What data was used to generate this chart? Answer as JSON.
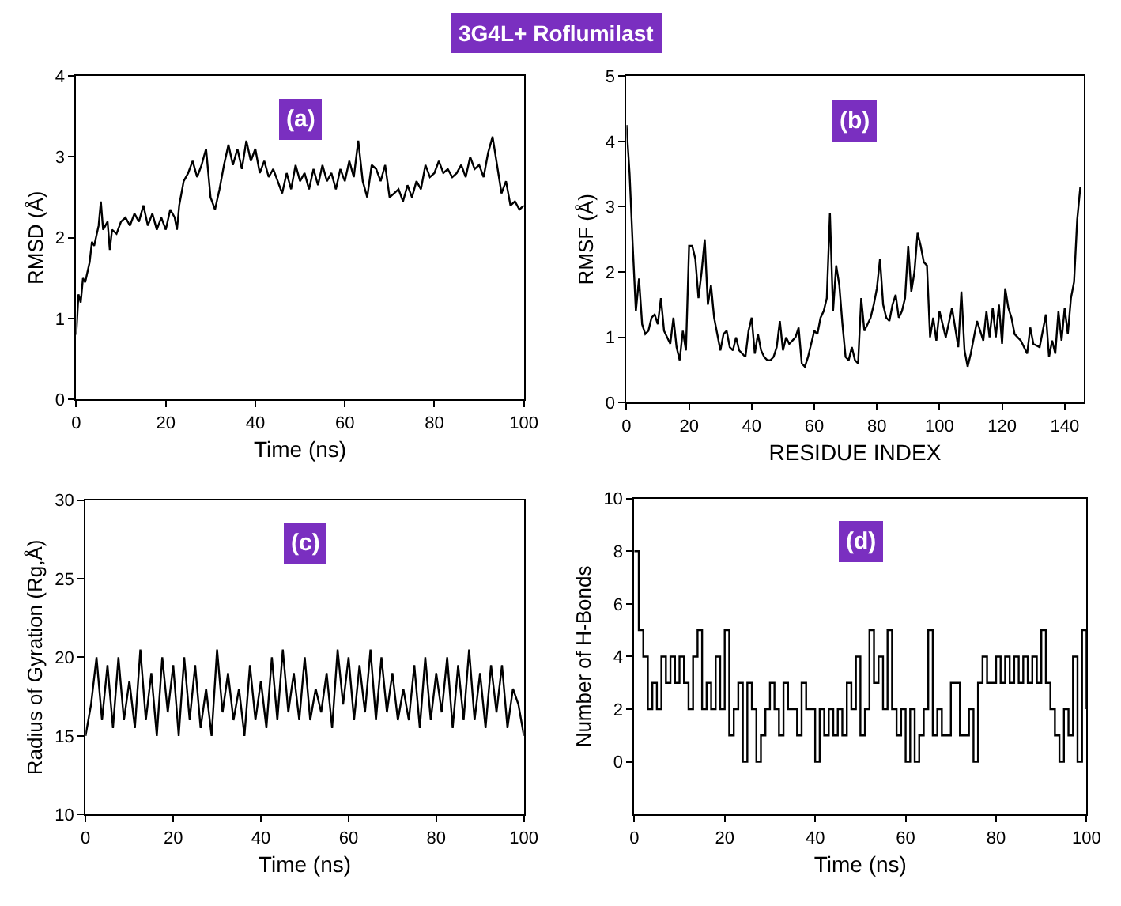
{
  "chart_data": [
    {
      "type": "line",
      "title": "3G4L+ Roflumilast",
      "annotations": [
        "(a)"
      ],
      "xlabel": "Time (ns)",
      "ylabel": "RMSD (Å)",
      "xlim": [
        0,
        100
      ],
      "xticks": [
        0,
        20,
        40,
        60,
        80,
        100
      ],
      "ylim": [
        0,
        4
      ],
      "yticks": [
        0,
        1,
        2,
        3,
        4
      ],
      "series": [
        {
          "color": "#000000",
          "x": [
            0,
            0.5,
            1,
            1.5,
            2,
            3,
            3.5,
            4,
            5,
            5.5,
            6,
            7,
            7.5,
            8,
            9,
            10,
            11,
            12,
            13,
            14,
            15,
            16,
            17,
            18,
            19,
            20,
            21,
            22,
            22.5,
            23,
            24,
            25,
            26,
            27,
            28,
            29,
            30,
            31,
            32,
            33,
            34,
            35,
            36,
            37,
            38,
            39,
            40,
            41,
            42,
            43,
            44,
            45,
            46,
            47,
            48,
            49,
            50,
            51,
            52,
            53,
            54,
            55,
            56,
            57,
            58,
            59,
            60,
            61,
            62,
            63,
            64,
            65,
            66,
            67,
            68,
            69,
            70,
            71,
            72,
            73,
            74,
            75,
            76,
            77,
            78,
            79,
            80,
            81,
            82,
            83,
            84,
            85,
            86,
            87,
            88,
            89,
            90,
            91,
            92,
            93,
            94,
            95,
            96,
            97,
            98,
            99,
            100
          ],
          "values": [
            0.8,
            1.3,
            1.2,
            1.5,
            1.45,
            1.7,
            1.95,
            1.9,
            2.15,
            2.45,
            2.1,
            2.2,
            1.85,
            2.1,
            2.05,
            2.2,
            2.25,
            2.15,
            2.3,
            2.2,
            2.4,
            2.15,
            2.3,
            2.1,
            2.25,
            2.1,
            2.35,
            2.25,
            2.1,
            2.4,
            2.7,
            2.8,
            2.95,
            2.75,
            2.9,
            3.1,
            2.5,
            2.35,
            2.6,
            2.9,
            3.15,
            2.9,
            3.1,
            2.85,
            3.2,
            2.95,
            3.1,
            2.8,
            2.95,
            2.75,
            2.85,
            2.7,
            2.55,
            2.8,
            2.6,
            2.9,
            2.7,
            2.8,
            2.6,
            2.85,
            2.65,
            2.9,
            2.7,
            2.8,
            2.6,
            2.85,
            2.7,
            2.95,
            2.75,
            3.2,
            2.7,
            2.5,
            2.9,
            2.85,
            2.7,
            2.9,
            2.5,
            2.55,
            2.6,
            2.45,
            2.65,
            2.5,
            2.7,
            2.6,
            2.9,
            2.75,
            2.8,
            2.95,
            2.8,
            2.85,
            2.75,
            2.8,
            2.9,
            2.75,
            3.0,
            2.85,
            2.9,
            2.75,
            3.05,
            3.25,
            2.9,
            2.55,
            2.7,
            2.4,
            2.45,
            2.35,
            2.4
          ]
        }
      ]
    },
    {
      "type": "line",
      "annotations": [
        "(b)"
      ],
      "xlabel": "RESIDUE INDEX",
      "ylabel": "RMSF (Å)",
      "xlim": [
        0,
        146
      ],
      "xticks": [
        0,
        20,
        40,
        60,
        80,
        100,
        120,
        140
      ],
      "ylim": [
        0,
        5
      ],
      "yticks": [
        0,
        1,
        2,
        3,
        4,
        5
      ],
      "series": [
        {
          "color": "#000000",
          "x": [
            0,
            1,
            2,
            3,
            4,
            5,
            6,
            7,
            8,
            9,
            10,
            11,
            12,
            13,
            14,
            15,
            16,
            17,
            18,
            19,
            20,
            21,
            22,
            23,
            24,
            25,
            26,
            27,
            28,
            29,
            30,
            31,
            32,
            33,
            34,
            35,
            36,
            37,
            38,
            39,
            40,
            41,
            42,
            43,
            44,
            45,
            46,
            47,
            48,
            49,
            50,
            51,
            52,
            53,
            54,
            55,
            56,
            57,
            58,
            59,
            60,
            61,
            62,
            63,
            64,
            65,
            66,
            67,
            68,
            69,
            70,
            71,
            72,
            73,
            74,
            75,
            76,
            77,
            78,
            79,
            80,
            81,
            82,
            83,
            84,
            85,
            86,
            87,
            88,
            89,
            90,
            91,
            92,
            93,
            94,
            95,
            96,
            97,
            98,
            99,
            100,
            102,
            104,
            106,
            107,
            108,
            109,
            110,
            112,
            114,
            115,
            116,
            117,
            118,
            119,
            120,
            121,
            122,
            123,
            124,
            126,
            128,
            129,
            130,
            132,
            134,
            135,
            136,
            137,
            138,
            139,
            140,
            141,
            142,
            143,
            144,
            145
          ],
          "values": [
            4.25,
            3.5,
            2.4,
            1.4,
            1.9,
            1.2,
            1.05,
            1.1,
            1.3,
            1.35,
            1.2,
            1.6,
            1.1,
            1.0,
            0.9,
            1.3,
            0.85,
            0.65,
            1.1,
            0.8,
            2.4,
            2.4,
            2.2,
            1.6,
            2.0,
            2.5,
            1.5,
            1.8,
            1.3,
            1.05,
            0.8,
            1.05,
            1.1,
            0.85,
            0.8,
            1.0,
            0.8,
            0.75,
            0.7,
            1.1,
            1.3,
            0.75,
            1.05,
            0.8,
            0.7,
            0.65,
            0.65,
            0.7,
            0.85,
            1.25,
            0.8,
            1.0,
            0.9,
            0.95,
            1.0,
            1.15,
            0.6,
            0.55,
            0.7,
            0.9,
            1.1,
            1.05,
            1.3,
            1.4,
            1.6,
            2.9,
            1.4,
            2.1,
            1.8,
            1.2,
            0.7,
            0.65,
            0.85,
            0.65,
            0.6,
            1.6,
            1.1,
            1.2,
            1.3,
            1.5,
            1.75,
            2.2,
            1.5,
            1.3,
            1.25,
            1.5,
            1.65,
            1.3,
            1.4,
            1.6,
            2.4,
            1.7,
            2.0,
            2.6,
            2.4,
            2.15,
            2.1,
            1.0,
            1.3,
            0.95,
            1.4,
            1.0,
            1.45,
            0.85,
            1.7,
            0.8,
            0.55,
            0.75,
            1.25,
            0.95,
            1.4,
            1.0,
            1.45,
            1.0,
            1.5,
            0.9,
            1.75,
            1.45,
            1.3,
            1.05,
            0.95,
            0.75,
            1.15,
            0.9,
            0.85,
            1.35,
            0.7,
            0.95,
            0.75,
            1.4,
            0.95,
            1.45,
            1.05,
            1.6,
            1.85,
            2.8,
            3.3
          ]
        }
      ]
    },
    {
      "type": "line",
      "annotations": [
        "(c)"
      ],
      "xlabel": "Time (ns)",
      "ylabel": "Radius of Gyration (Rg,Å)",
      "xlim": [
        0,
        100
      ],
      "xticks": [
        0,
        20,
        40,
        60,
        80,
        100
      ],
      "ylim": [
        10,
        30
      ],
      "yticks": [
        10,
        15,
        20,
        25,
        30
      ],
      "series": [
        {
          "color": "#000000",
          "x": [
            0,
            1.25,
            2.5,
            3.75,
            5,
            6.25,
            7.5,
            8.75,
            10,
            11.25,
            12.5,
            13.75,
            15,
            16.25,
            17.5,
            18.75,
            20,
            21.25,
            22.5,
            23.75,
            25,
            26.25,
            27.5,
            28.75,
            30,
            31.25,
            32.5,
            33.75,
            35,
            36.25,
            37.5,
            38.75,
            40,
            41.25,
            42.5,
            43.75,
            45,
            46.25,
            47.5,
            48.75,
            50,
            51.25,
            52.5,
            53.75,
            55,
            56.25,
            57.5,
            58.75,
            60,
            61.25,
            62.5,
            63.75,
            65,
            66.25,
            67.5,
            68.75,
            70,
            71.25,
            72.5,
            73.75,
            75,
            76.25,
            77.5,
            78.75,
            80,
            81.25,
            82.5,
            83.75,
            85,
            86.25,
            87.5,
            88.75,
            90,
            91.25,
            92.5,
            93.75,
            95,
            96.25,
            97.5,
            98.75,
            100
          ],
          "values": [
            15,
            17,
            20,
            16,
            19.5,
            15.5,
            20,
            16,
            18.5,
            15.5,
            20.5,
            16,
            19,
            15,
            20,
            16.5,
            19.5,
            15,
            20,
            16,
            19.5,
            15.5,
            18,
            15,
            20.5,
            16.5,
            19,
            16,
            18,
            15,
            19.5,
            16,
            18.5,
            15.5,
            20,
            16,
            20.5,
            16.5,
            19,
            16,
            20,
            16,
            18,
            16.5,
            19,
            15.5,
            20.5,
            17,
            20,
            16,
            19.5,
            16.5,
            20.5,
            16,
            20,
            16.5,
            19,
            16,
            18,
            16,
            19.5,
            15.5,
            20,
            16,
            19,
            16.5,
            20,
            15.5,
            19.5,
            16,
            20.5,
            16,
            19,
            15.5,
            19.5,
            16.5,
            19.5,
            15.5,
            18,
            17,
            15
          ]
        }
      ]
    },
    {
      "type": "step",
      "annotations": [
        "(d)"
      ],
      "xlabel": "Time (ns)",
      "ylabel": "Number of H-Bonds",
      "xlim": [
        0,
        100
      ],
      "xticks": [
        0,
        20,
        40,
        60,
        80,
        100
      ],
      "ylim": [
        -2,
        10
      ],
      "yticks": [
        0,
        2,
        4,
        6,
        8,
        10
      ],
      "series": [
        {
          "color": "#000000",
          "x": [
            0,
            1,
            2,
            3,
            4,
            5,
            6,
            7,
            8,
            9,
            10,
            11,
            12,
            13,
            14,
            15,
            16,
            17,
            18,
            19,
            20,
            21,
            22,
            23,
            24,
            25,
            26,
            27,
            28,
            29,
            30,
            31,
            32,
            33,
            34,
            35,
            36,
            37,
            38,
            39,
            40,
            41,
            42,
            43,
            44,
            45,
            46,
            47,
            48,
            49,
            50,
            51,
            52,
            53,
            54,
            55,
            56,
            57,
            58,
            59,
            60,
            61,
            62,
            63,
            64,
            65,
            66,
            67,
            68,
            69,
            70,
            71,
            72,
            73,
            74,
            75,
            76,
            77,
            78,
            79,
            80,
            81,
            82,
            83,
            84,
            85,
            86,
            87,
            88,
            89,
            90,
            91,
            92,
            93,
            94,
            95,
            96,
            97,
            98,
            99,
            100
          ],
          "values": [
            8,
            5,
            4,
            2,
            3,
            2,
            4,
            3,
            4,
            3,
            4,
            3,
            2,
            4,
            5,
            2,
            3,
            2,
            4,
            2,
            5,
            1,
            2,
            3,
            0,
            3,
            2,
            0,
            1,
            2,
            3,
            2,
            1,
            3,
            2,
            2,
            1,
            3,
            2,
            2,
            0,
            2,
            1,
            2,
            1,
            2,
            1,
            3,
            2,
            4,
            1,
            2,
            5,
            3,
            4,
            2,
            5,
            2,
            1,
            2,
            0,
            2,
            0,
            1,
            2,
            5,
            1,
            2,
            1,
            1,
            3,
            3,
            1,
            1,
            2,
            0,
            3,
            4,
            3,
            3,
            4,
            3,
            4,
            3,
            4,
            3,
            4,
            3,
            4,
            3,
            5,
            3,
            2,
            1,
            0,
            2,
            1,
            4,
            0,
            5,
            2
          ]
        }
      ]
    }
  ]
}
